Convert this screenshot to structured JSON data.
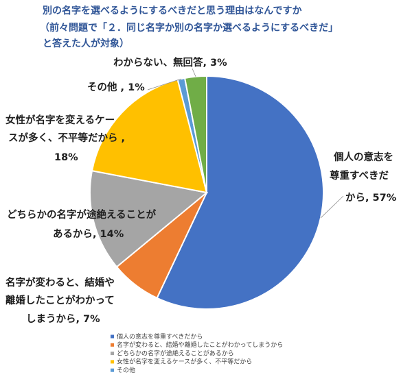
{
  "chart_data": {
    "type": "pie",
    "title": [
      "別の名字を選べるようにするべきだと思う理由はなんですか",
      "（前々問題で「２．同じ名字か別の名字か選べるようにするべきだ」",
      "と答えた人が対象）"
    ],
    "categories": [
      "個人の意志を尊重すべきだから",
      "名字が変わると、結婚や離婚したことがわかってしまうから",
      "どちらかの名字が途絶えることがあるから",
      "女性が名字を変えるケースが多く、不平等だから",
      "その他",
      "わからない、無回答"
    ],
    "values": [
      57,
      7,
      14,
      18,
      1,
      3
    ],
    "colors": [
      "#4472c4",
      "#ed7d31",
      "#a5a5a5",
      "#ffc000",
      "#5b9bd5",
      "#70ad47"
    ],
    "data_labels": [
      [
        "個人の意志を",
        "尊重すべきだ",
        "から, 57%"
      ],
      [
        "名字が変わると、結婚や",
        "離婚したことがわかって",
        "しまうから, 7%"
      ],
      [
        "どちらかの名字が途絶えることが",
        "あるから, 14%"
      ],
      [
        "女性が名字を変えるケー",
        "スが多く、不平等だから ,",
        "18%"
      ],
      [
        "その他 , 1%"
      ],
      [
        "わからない、無回答, 3%"
      ]
    ],
    "legend": [
      "個人の意志を尊重すべきだから",
      "名字が変わると、結婚や離婚したことがわかってしまうから",
      "どちらかの名字が途絶えることがあるから",
      "女性が名字を変えるケースが多く、不平等だから",
      "その他"
    ],
    "legend_position": "bottom-left"
  }
}
